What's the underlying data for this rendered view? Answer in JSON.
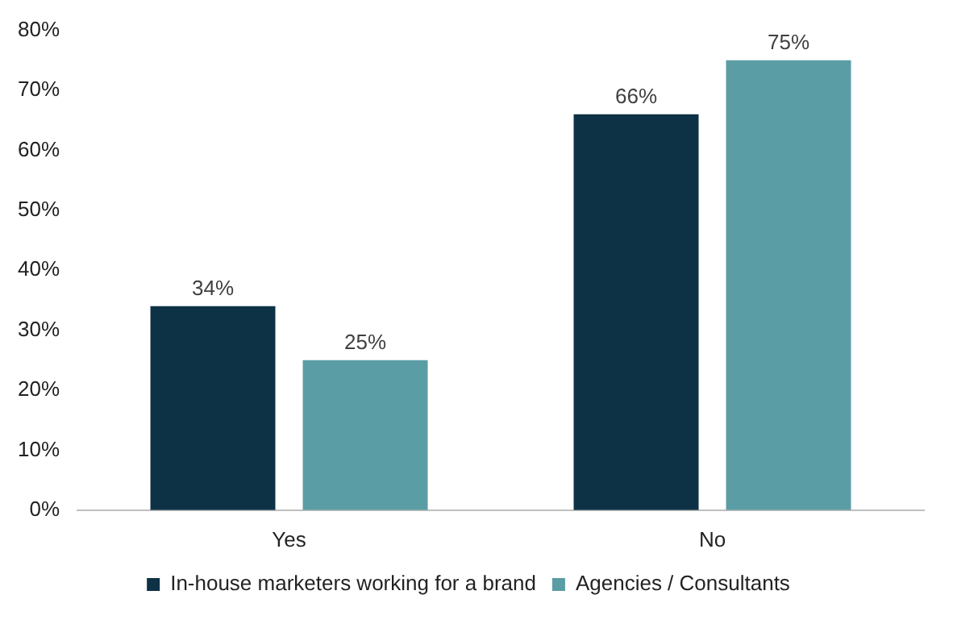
{
  "chart_data": {
    "type": "bar",
    "categories": [
      "Yes",
      "No"
    ],
    "series": [
      {
        "name": "In-house marketers working for a brand",
        "color": "#0e3245",
        "values": [
          34,
          66
        ],
        "value_labels": [
          "34%",
          "66%"
        ]
      },
      {
        "name": "Agencies / Consultants",
        "color": "#5b9da5",
        "values": [
          25,
          75
        ],
        "value_labels": [
          "25%",
          "75%"
        ]
      }
    ],
    "ylim": [
      0,
      80
    ],
    "yticks": [
      {
        "value": 0,
        "label": "0%"
      },
      {
        "value": 10,
        "label": "10%"
      },
      {
        "value": 20,
        "label": "20%"
      },
      {
        "value": 30,
        "label": "30%"
      },
      {
        "value": 40,
        "label": "40%"
      },
      {
        "value": 50,
        "label": "50%"
      },
      {
        "value": 60,
        "label": "60%"
      },
      {
        "value": 70,
        "label": "70%"
      },
      {
        "value": 80,
        "label": "80%"
      }
    ],
    "grid": false,
    "legend": "bottom"
  }
}
